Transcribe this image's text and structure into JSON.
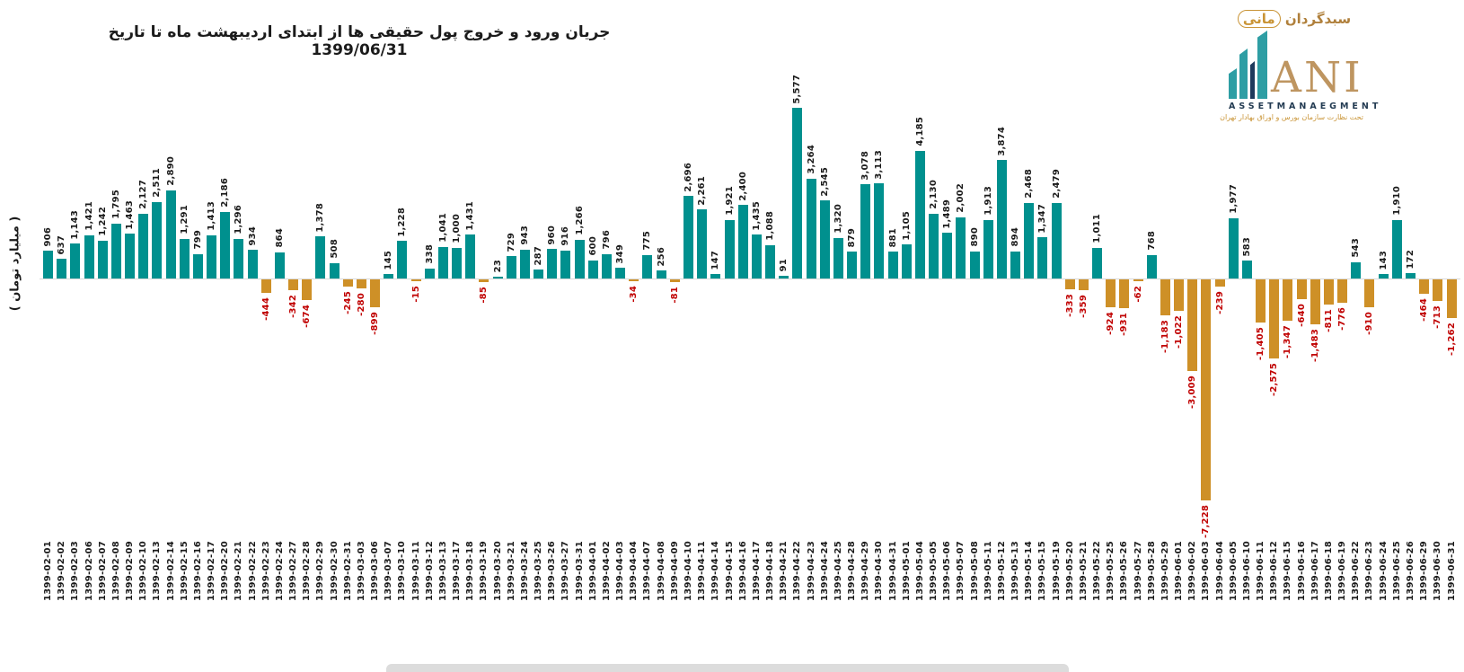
{
  "title": "جریان ورود و خروج پول حقیقی ها از ابتدای اردیبهشت ماه تا تاریخ 1399/06/31",
  "y_axis_label": "( میلیارد تومان )",
  "logo": {
    "brand_fa_prefix": "سبدگردان",
    "brand_fa_name": "مانی",
    "brand_en": "ANI",
    "subtitle_en": "ASSETMANAEGMENT",
    "regulator_fa": "تحت نظارت سازمان بورس و اوراق بهادار تهران"
  },
  "colors": {
    "positive_bar": "#00908E",
    "negative_bar": "#CE9027",
    "positive_label": "#1A1A1A",
    "negative_label": "#C00000",
    "axis_line": "#D9D9D9",
    "logo_gold": "#BE9560",
    "logo_teal": "#2E9EA4",
    "logo_navy": "#1E3A5C"
  },
  "chart_data": {
    "type": "bar",
    "title": "جریان ورود و خروج پول حقیقی ها از ابتدای اردیبهشت ماه تا تاریخ 1399/06/31",
    "xlabel": "",
    "ylabel": "میلیارد تومان",
    "ylim": [
      -7500,
      6000
    ],
    "grid": false,
    "legend": false,
    "positive_color": "#00908E",
    "negative_color": "#CE9027",
    "categories": [
      "1399-02-01",
      "1399-02-02",
      "1399-02-03",
      "1399-02-06",
      "1399-02-07",
      "1399-02-08",
      "1399-02-09",
      "1399-02-10",
      "1399-02-13",
      "1399-02-14",
      "1399-02-15",
      "1399-02-16",
      "1399-02-17",
      "1399-02-20",
      "1399-02-21",
      "1399-02-22",
      "1399-02-23",
      "1399-02-24",
      "1399-02-27",
      "1399-02-28",
      "1399-02-29",
      "1399-02-30",
      "1399-02-31",
      "1399-03-03",
      "1399-03-06",
      "1399-03-07",
      "1399-03-10",
      "1399-03-11",
      "1399-03-12",
      "1399-03-13",
      "1399-03-17",
      "1399-03-18",
      "1399-03-19",
      "1399-03-20",
      "1399-03-21",
      "1399-03-24",
      "1399-03-25",
      "1399-03-26",
      "1399-03-27",
      "1399-03-31",
      "1399-04-01",
      "1399-04-02",
      "1399-04-03",
      "1399-04-04",
      "1399-04-07",
      "1399-04-08",
      "1399-04-09",
      "1399-04-10",
      "1399-04-11",
      "1399-04-14",
      "1399-04-15",
      "1399-04-16",
      "1399-04-17",
      "1399-04-18",
      "1399-04-21",
      "1399-04-22",
      "1399-04-23",
      "1399-04-24",
      "1399-04-25",
      "1399-04-28",
      "1399-04-29",
      "1399-04-30",
      "1399-04-31",
      "1399-05-01",
      "1399-05-04",
      "1399-05-05",
      "1399-05-06",
      "1399-05-07",
      "1399-05-08",
      "1399-05-11",
      "1399-05-12",
      "1399-05-13",
      "1399-05-14",
      "1399-05-15",
      "1399-05-19",
      "1399-05-20",
      "1399-05-21",
      "1399-05-22",
      "1399-05-25",
      "1399-05-26",
      "1399-05-27",
      "1399-05-28",
      "1399-05-29",
      "1399-06-01",
      "1399-06-02",
      "1399-06-03",
      "1399-06-04",
      "1399-06-05",
      "1399-06-10",
      "1399-06-11",
      "1399-06-12",
      "1399-06-15",
      "1399-06-16",
      "1399-06-17",
      "1399-06-18",
      "1399-06-19",
      "1399-06-22",
      "1399-06-23",
      "1399-06-24",
      "1399-06-25",
      "1399-06-26",
      "1399-06-29",
      "1399-06-30",
      "1399-06-31"
    ],
    "values": [
      906,
      637,
      1143,
      1421,
      1242,
      1795,
      1463,
      2127,
      2511,
      2890,
      1291,
      799,
      1413,
      2186,
      1296,
      934,
      -444,
      864,
      -342,
      -674,
      1378,
      508,
      -245,
      -280,
      -899,
      145,
      1228,
      -15,
      338,
      1041,
      1000,
      1431,
      -85,
      23,
      729,
      943,
      287,
      960,
      916,
      1266,
      600,
      796,
      349,
      -34,
      775,
      256,
      -81,
      2696,
      2261,
      147,
      1921,
      2400,
      1435,
      1088,
      91,
      5577,
      3264,
      2545,
      1320,
      879,
      3078,
      3113,
      881,
      1105,
      4185,
      2130,
      1489,
      2002,
      890,
      1913,
      3874,
      894,
      2468,
      1347,
      2479,
      -333,
      -359,
      1011,
      -924,
      -931,
      -62,
      768,
      -1183,
      -1022,
      -3009,
      -7228,
      -239,
      1977,
      583,
      -1405,
      -2575,
      -1347,
      -640,
      -1483,
      -811,
      -776,
      543,
      -910,
      143,
      1910,
      172,
      -464,
      -713,
      -1262
    ]
  }
}
